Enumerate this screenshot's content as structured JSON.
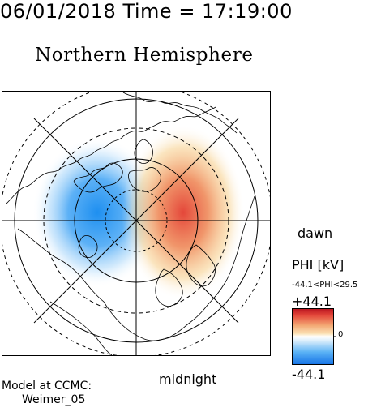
{
  "header": {
    "datetime_line": "06/01/2018 Time = 17:19:00"
  },
  "map": {
    "title": "Northern Hemisphere",
    "labels": {
      "bottom": "midnight",
      "right": "dawn"
    },
    "potential_extrema": {
      "negative_center": "dusk-side cell",
      "positive_center": "dawn-side cell"
    },
    "colors": {
      "negative": "#1e8ff0",
      "positive": "#e4473a",
      "neutral": "#ffffff",
      "grid": "#000000",
      "coast": "#000000"
    }
  },
  "colorbar": {
    "title": "PHI [kV]",
    "range_text": "-44.1<PHI<29.5",
    "max_label": "+44.1",
    "min_label": "-44.1",
    "zero_label": "0"
  },
  "model": {
    "line1": "Model at CCMC:",
    "line2": "Weimer_05"
  }
}
